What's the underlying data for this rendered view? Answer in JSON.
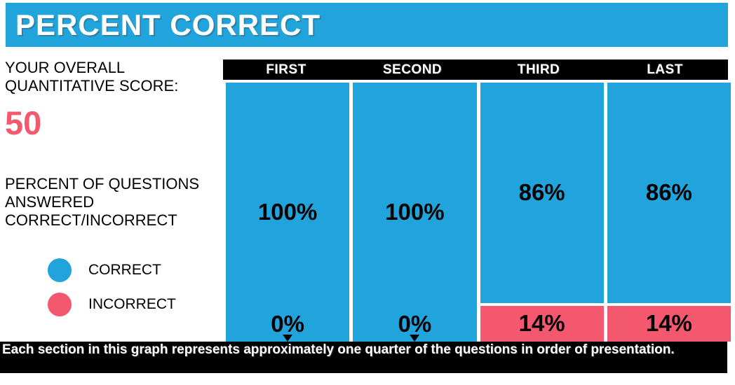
{
  "header": {
    "title": "PERCENT CORRECT"
  },
  "sidebar": {
    "score_label": "YOUR OVERALL QUANTITATIVE SCORE:",
    "score_value": "50",
    "description": "PERCENT OF QUESTIONS ANSWERED CORRECT/INCORRECT",
    "legend": [
      {
        "label": "CORRECT",
        "color": "#21a4dc"
      },
      {
        "label": "INCORRECT",
        "color": "#f4586f"
      }
    ]
  },
  "chart": {
    "columns": [
      {
        "label": "FIRST",
        "correct_label": "100%",
        "incorrect_label": "0%"
      },
      {
        "label": "SECOND",
        "correct_label": "100%",
        "incorrect_label": "0%"
      },
      {
        "label": "THIRD",
        "correct_label": "86%",
        "incorrect_label": "14%"
      },
      {
        "label": "LAST",
        "correct_label": "86%",
        "incorrect_label": "14%"
      }
    ]
  },
  "chart_data": {
    "type": "bar",
    "subtype": "stacked-100-percent",
    "title": "PERCENT CORRECT",
    "categories": [
      "FIRST",
      "SECOND",
      "THIRD",
      "LAST"
    ],
    "series": [
      {
        "name": "CORRECT",
        "color": "#21a4dc",
        "values": [
          100,
          100,
          86,
          86
        ]
      },
      {
        "name": "INCORRECT",
        "color": "#f4586f",
        "values": [
          0,
          0,
          14,
          14
        ]
      }
    ],
    "unit": "%",
    "ylim": [
      0,
      100
    ],
    "legend_position": "left",
    "grid": false,
    "note": "zero-percent incorrect sections are marked with a downward arrow at the bar bottom"
  },
  "footer": {
    "note": "Each section in this graph represents approximately one quarter of the questions in order of presentation."
  },
  "colors": {
    "accent_blue": "#21a4dc",
    "accent_pink": "#f4586f",
    "bar_black": "#000000",
    "text_white": "#ffffff"
  }
}
